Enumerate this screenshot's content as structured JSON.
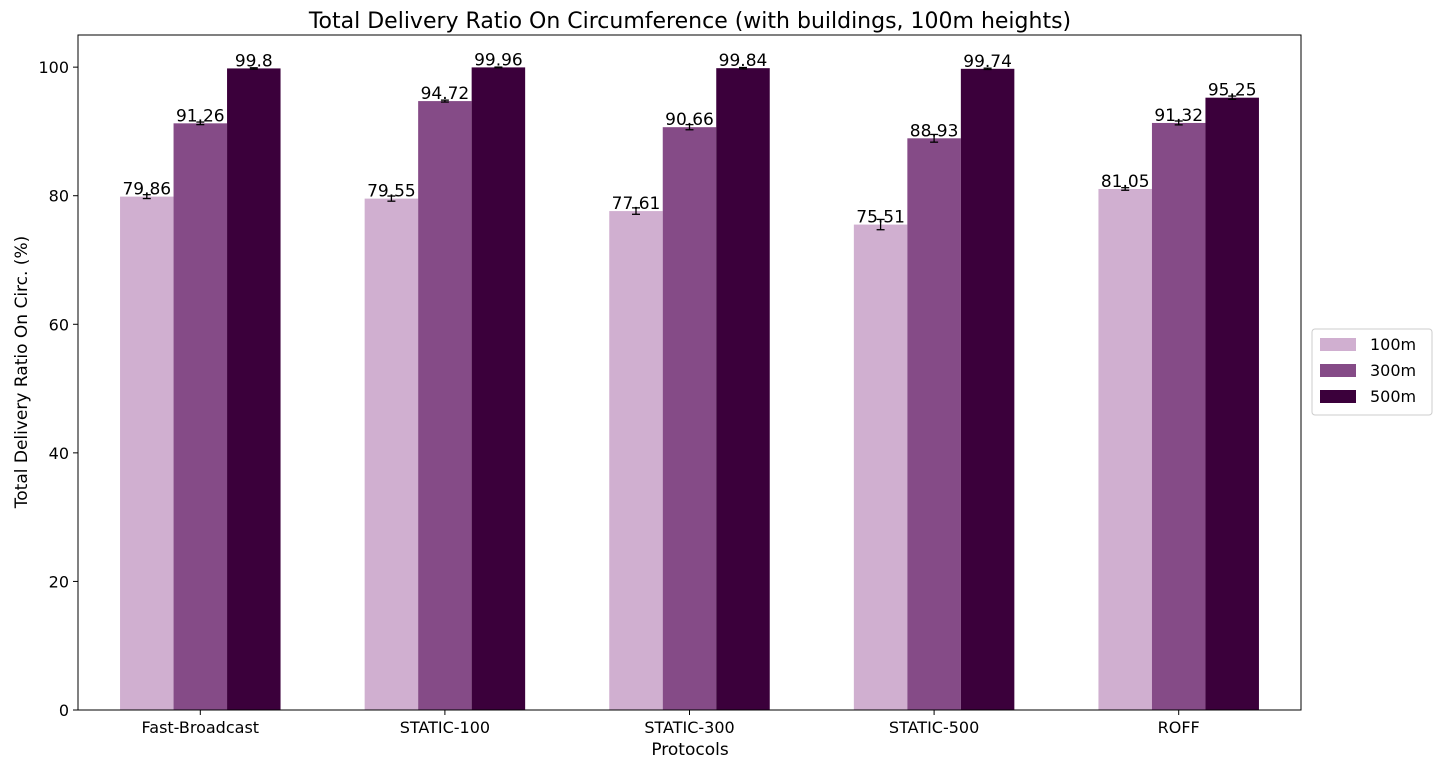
{
  "chart_data": {
    "type": "bar",
    "title": "Total Delivery Ratio On Circumference (with buildings, 100m heights)",
    "xlabel": "Protocols",
    "ylabel": "Total Delivery Ratio On Circ. (%)",
    "categories": [
      "Fast-Broadcast",
      "STATIC-100",
      "STATIC-300",
      "STATIC-500",
      "ROFF"
    ],
    "ylim": [
      0,
      105
    ],
    "yticks": [
      0,
      20,
      40,
      60,
      80,
      100
    ],
    "grid": false,
    "legend_position": "center-right",
    "series": [
      {
        "name": "100m",
        "color": "#d0afd0",
        "values": [
          79.86,
          79.55,
          77.61,
          75.51,
          81.05
        ],
        "labels": [
          "79.86",
          "79.55",
          "77.61",
          "75.51",
          "81.05"
        ],
        "errors": [
          0.3,
          0.4,
          0.5,
          0.8,
          0.2
        ]
      },
      {
        "name": "300m",
        "color": "#854b87",
        "values": [
          91.26,
          94.72,
          90.66,
          88.93,
          91.32
        ],
        "labels": [
          "91.26",
          "94.72",
          "90.66",
          "88.93",
          "91.32"
        ],
        "errors": [
          0.2,
          0.15,
          0.4,
          0.6,
          0.3
        ]
      },
      {
        "name": "500m",
        "color": "#3b003b",
        "values": [
          99.8,
          99.96,
          99.84,
          99.74,
          95.25
        ],
        "labels": [
          "99.8",
          "99.96",
          "99.84",
          "99.74",
          "95.25"
        ],
        "errors": [
          0.1,
          0.05,
          0.1,
          0.1,
          0.25
        ]
      }
    ]
  }
}
